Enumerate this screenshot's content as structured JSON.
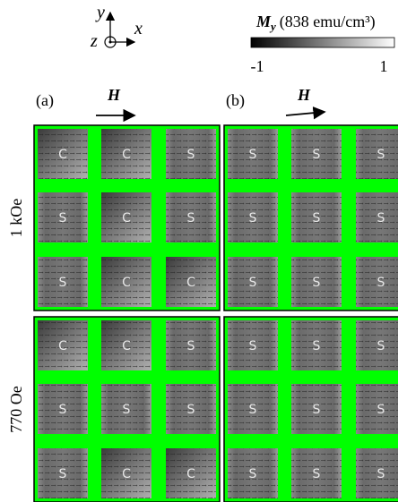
{
  "axes": {
    "y": "y",
    "z": "z",
    "x": "x"
  },
  "colorbar": {
    "symbol": "M",
    "subscript": "y",
    "unit": "(838 emu/cm³)",
    "min": -1,
    "max": 1
  },
  "columns": [
    {
      "label": "(a)",
      "field": "H"
    },
    {
      "label": "(b)",
      "field": "H"
    }
  ],
  "rows": [
    {
      "label": "1 kOe",
      "panels": [
        [
          [
            "C",
            "C",
            "S"
          ],
          [
            "S",
            "C",
            "S"
          ],
          [
            "S",
            "C",
            "C"
          ]
        ],
        [
          [
            "S",
            "S",
            "S"
          ],
          [
            "S",
            "S",
            "S"
          ],
          [
            "S",
            "S",
            "S"
          ]
        ]
      ]
    },
    {
      "label": "770 Oe",
      "panels": [
        [
          [
            "C",
            "C",
            "S"
          ],
          [
            "S",
            "S",
            "S"
          ],
          [
            "S",
            "C",
            "C"
          ]
        ],
        [
          [
            "S",
            "S",
            "S"
          ],
          [
            "S",
            "S",
            "S"
          ],
          [
            "S",
            "S",
            "S"
          ]
        ]
      ]
    }
  ]
}
